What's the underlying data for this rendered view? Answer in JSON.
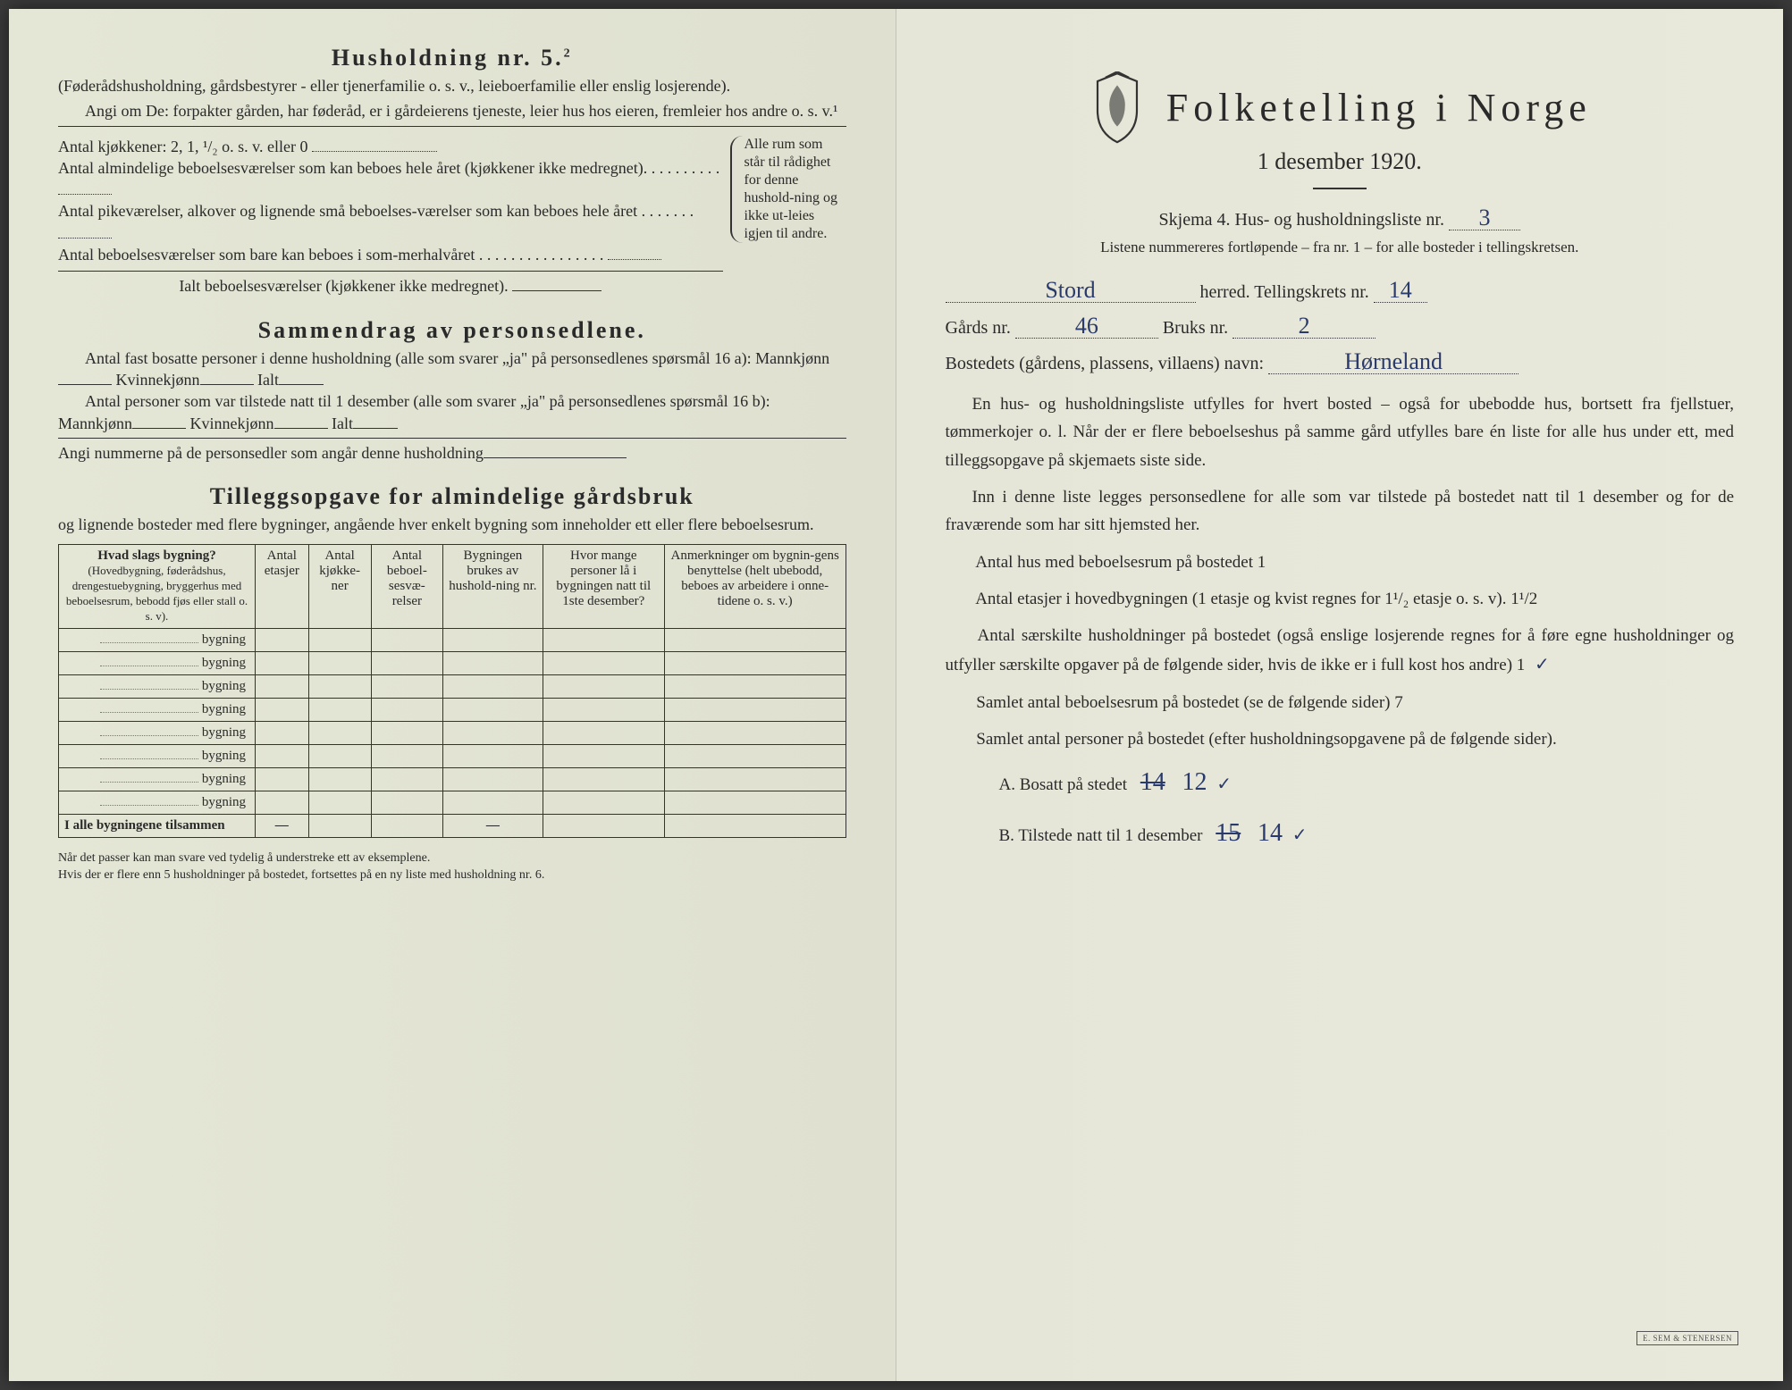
{
  "left": {
    "title": "Husholdning nr. 5.",
    "title_sup": "2",
    "sub1": "(Føderådshusholdning, gårdsbestyrer - eller tjenerfamilie o. s. v., leieboerfamilie eller enslig losjerende).",
    "sub2": "Angi om De:  forpakter gården, har føderåd, er i gårdeierens tjeneste, leier hus hos eieren, fremleier hos andre o. s. v.¹",
    "line_kjokken": "Antal kjøkkener: 2, 1, ¹/₂ o. s. v. eller 0",
    "line_alm": "Antal almindelige beboelsesværelser som kan beboes hele året (kjøkkener ikke medregnet).",
    "line_pike": "Antal pikeværelser, alkover og lignende små beboelses-værelser som kan beboes hele året",
    "line_sommer": "Antal beboelsesværelser som bare kan beboes i som-merhalvåret",
    "line_ialt": "Ialt beboelsesværelser  (kjøkkener ikke medregnet).",
    "brace_text": "Alle rum som står til rådighet for denne hushold-ning og ikke ut-leies igjen til andre.",
    "sammen_title": "Sammendrag av personsedlene.",
    "sammen_p1a": "Antal fast bosatte personer i denne husholdning (alle som svarer „ja\" på personsedlenes spørsmål 16 a): Mannkjønn",
    "sammen_p1b": "Kvinnekjønn",
    "sammen_p1c": "Ialt",
    "sammen_p2a": "Antal personer som var tilstede natt til 1 desember (alle som svarer „ja\" på personsedlenes spørsmål 16 b): Mannkjønn",
    "sammen_p2b": "Kvinnekjønn",
    "sammen_p2c": "Ialt",
    "sammen_p3": "Angi nummerne på de personsedler som angår denne husholdning",
    "tillegg_title": "Tilleggsopgave for almindelige gårdsbruk",
    "tillegg_sub": "og lignende bosteder med flere bygninger, angående hver enkelt bygning som inneholder ett eller flere beboelsesrum.",
    "tbl_h1": "Hvad slags bygning?",
    "tbl_h1_sub": "(Hovedbygning, føderådshus, drengestuebygning, bryggerhus med beboelsesrum, bebodd fjøs eller stall o. s. v).",
    "tbl_h2": "Antal etasjer",
    "tbl_h3": "Antal kjøkke-ner",
    "tbl_h4": "Antal beboel-sesvæ-relser",
    "tbl_h5": "Bygningen brukes av hushold-ning nr.",
    "tbl_h6": "Hvor mange personer lå i bygningen natt til 1ste desember?",
    "tbl_h7": "Anmerkninger om bygnin-gens benyttelse (helt ubebodd, beboes av arbeidere i onne-tidene o. s. v.)",
    "row_label": "bygning",
    "row_count": 8,
    "foot_label": "I alle bygningene tilsammen",
    "footnote": "Når det passer kan man svare ved tydelig å understreke ett av eksemplene.\nHvis der er flere enn 5 husholdninger på bostedet, fortsettes på en ny liste med husholdning nr. 6."
  },
  "right": {
    "title": "Folketelling  i  Norge",
    "date": "1 desember 1920.",
    "skjema": "Skjema 4.   Hus- og husholdningsliste nr.",
    "skjema_val": "3",
    "listene": "Listene nummereres fortløpende – fra nr. 1 – for alle bosteder i tellingskretsen.",
    "herred_label": "herred.   Tellingskrets nr.",
    "herred_val": "Stord",
    "krets_val": "14",
    "gards_label": "Gårds nr.",
    "gards_val": "46",
    "bruks_label": "Bruks nr.",
    "bruks_val": "2",
    "bosted_label": "Bostedets (gårdens, plassens, villaens) navn:",
    "bosted_val": "Hørneland",
    "para1": "En hus- og husholdningsliste utfylles for hvert bosted – også for ubebodde hus, bortsett fra fjellstuer, tømmerkojer o. l.  Når der er flere beboelseshus på samme gård utfylles bare én liste for alle hus under ett, med tilleggsopgave på skjemaets siste side.",
    "para2": "Inn i denne liste legges personsedlene for alle som var tilstede på bostedet natt til 1 desember og for de fraværende som har sitt hjemsted her.",
    "q_antalhus": "Antal hus med beboelsesrum på bostedet",
    "q_antalhus_val": "1",
    "q_etasjer_a": "Antal etasjer i hovedbygningen (1 etasje og kvist regnes for 1¹/₂ etasje o. s. v).",
    "q_etasjer_val": "1¹/2",
    "q_hushold": "Antal særskilte husholdninger på bostedet (også enslige losjerende regnes for å føre egne husholdninger og utfyller særskilte opgaver på de følgende sider, hvis de ikke er i full kost hos andre)",
    "q_hushold_val": "1",
    "q_samlet_rum": "Samlet antal beboelsesrum på bostedet (se de følgende sider)",
    "q_samlet_rum_val": "7",
    "q_samlet_pers": "Samlet antal personer på bostedet (efter husholdningsopgavene på de følgende sider).",
    "q_A": "A.  Bosatt på stedet",
    "q_A_strike": "14",
    "q_A_val": "12",
    "q_B": "B.  Tilstede natt til 1 desember",
    "q_B_strike": "15",
    "q_B_val": "14",
    "check": "✓",
    "stamp": "E. SEM & STENERSEN"
  },
  "colors": {
    "paper": "#e8e8da",
    "ink": "#2a2a2a",
    "handwriting": "#2a3a6a"
  }
}
